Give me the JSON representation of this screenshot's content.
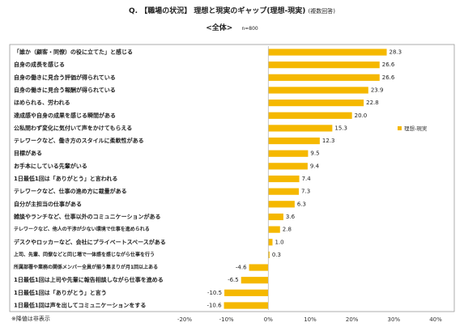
{
  "title_main": "Q. 【職場の状況】 理想と現実のギャップ(理想-現実)",
  "title_sub": "(複数回答)",
  "subtitle": "<全体>",
  "sample_size": "n=800",
  "note": "※降値は非表示",
  "colors": {
    "bar": "#F5B800",
    "frame": "#9a9a9a"
  },
  "chart_data": {
    "type": "bar",
    "orientation": "horizontal",
    "categories": [
      "「誰か（顧客・同僚）の役に立てた」と感じる",
      "自身の成長を感じる",
      "自身の働きに見合う評価が得られている",
      "自身の働きに見合う報酬が得られている",
      "ほめられる、労われる",
      "達成感や自身の成果を感じる瞬間がある",
      "公私問わず変化に気付いて声をかけてもらえる",
      "テレワークなど、働き方のスタイルに柔軟性がある",
      "目標がある",
      "お手本にしている先輩がいる",
      "1日最低1回は「ありがとう」と言われる",
      "テレワークなど、仕事の進め方に裁量がある",
      "自分が主担当の仕事がある",
      "雑談やランチなど、仕事以外のコミュニケーションがある",
      "テレワークなど、他人の干渉が少ない環境で仕事を進められる",
      "デスクやロッカーなど、会社にプライベートスペースがある",
      "上司、先輩、同僚などと同じ場で一体感を感じながら仕事を行う",
      "所属部署や業務の関係メンバー全員が揃う集まりが月1回以上ある",
      "1日最低1回は上司や先輩に報告相談しながら仕事を進める",
      "1日最低1回は「ありがとう」と言う",
      "1日最低1回は声を出してコミュニケーションをする"
    ],
    "small_label_indices": [
      14,
      16,
      17
    ],
    "series": [
      {
        "name": "理想-現実",
        "values": [
          28.3,
          26.6,
          26.6,
          23.9,
          22.8,
          20.0,
          15.3,
          12.3,
          9.5,
          9.4,
          7.4,
          7.3,
          6.3,
          3.6,
          2.8,
          1.0,
          0.3,
          -4.6,
          -6.5,
          -10.5,
          -10.6
        ],
        "labels": [
          "28.3",
          "26.6",
          "26.6",
          "23.9",
          "22.8",
          "20.0",
          "15.3",
          "12.3",
          "9.5",
          "9.4",
          "7.4",
          "7.3",
          "6.3",
          "3.6",
          "2.8",
          "1.0",
          "0.3",
          "-4.6",
          "-6.5",
          "-10.5",
          "-10.6"
        ]
      }
    ],
    "xlim": [
      -20,
      40
    ],
    "xticks": [
      -20,
      -10,
      0,
      10,
      20,
      30,
      40
    ],
    "xtick_labels": [
      "-20%",
      "-10%",
      "0%",
      "10%",
      "20%",
      "30%",
      "40%"
    ],
    "legend_position": "right",
    "grid": false
  }
}
